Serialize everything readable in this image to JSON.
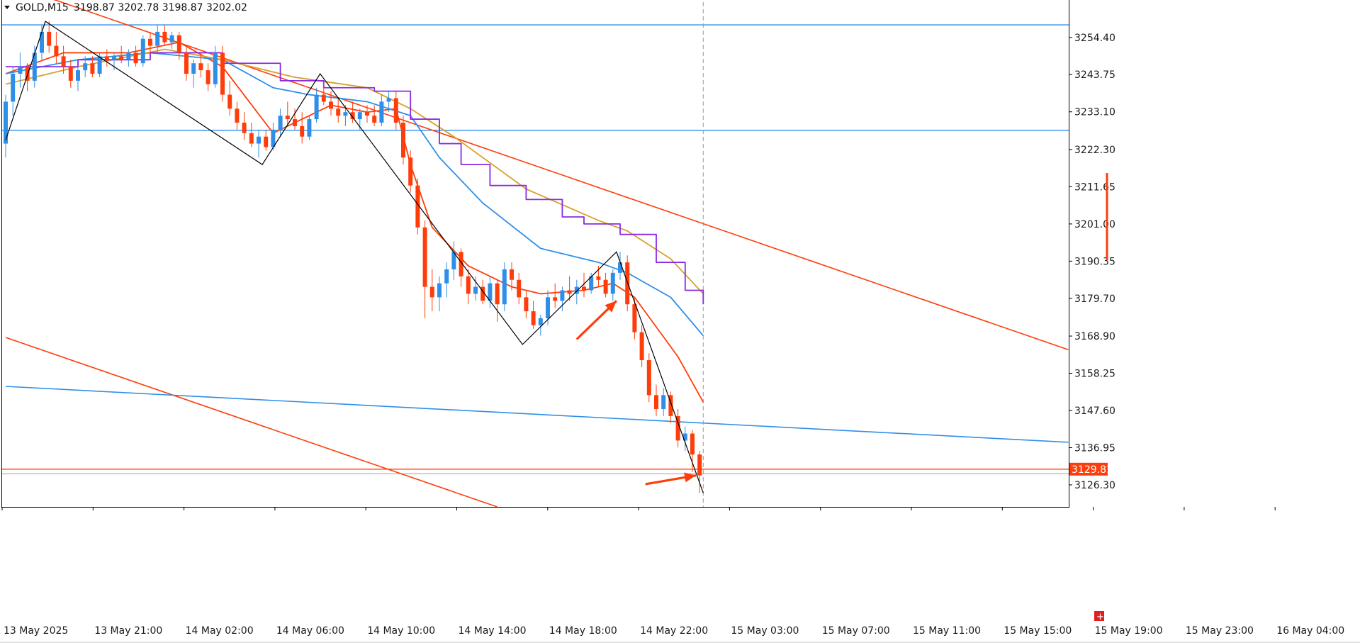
{
  "header": {
    "menu_icon": "triangle-down-icon",
    "symbol": "GOLD,M15",
    "ohlc": "3198.87 3202.78 3198.87 3202.02"
  },
  "colors": {
    "bull": "#2f8fe8",
    "bear": "#ff3d0a",
    "ma_fast": "#ff3d0a",
    "ma_mid": "#2f8fe8",
    "ma_slow": "#d8a02a",
    "ichimoku": "#8a2be2",
    "zigzag": "#000000",
    "hline_blue": "#2f8fe8",
    "hline_red": "#ff3d0a",
    "price_tag_bg": "#ff3d0a"
  },
  "chart_data": {
    "type": "candlestick",
    "symbol": "GOLD",
    "timeframe": "M15",
    "ylim": [
      3120.0,
      3264.5
    ],
    "y_ticks": [
      "3254.40",
      "3243.75",
      "3233.10",
      "3222.30",
      "3211.65",
      "3201.00",
      "3190.35",
      "3179.70",
      "3168.90",
      "3158.25",
      "3147.60",
      "3136.95",
      "3126.30"
    ],
    "x_ticks": [
      "13 May 2025",
      "13 May 21:00",
      "14 May 02:00",
      "14 May 06:00",
      "14 May 10:00",
      "14 May 14:00",
      "14 May 18:00",
      "14 May 22:00",
      "15 May 03:00",
      "15 May 07:00",
      "15 May 11:00",
      "15 May 15:00",
      "15 May 19:00",
      "15 May 23:00",
      "16 May 04:00"
    ],
    "x_range": [
      0,
      147
    ],
    "current_price": "3129.81",
    "horizontal_levels": [
      {
        "price": 3258.0,
        "color": "blue"
      },
      {
        "price": 3227.8,
        "color": "blue"
      },
      {
        "price": 3130.8,
        "color": "red"
      },
      {
        "price": 3129.5,
        "color": "gray"
      }
    ],
    "trend_lines": [
      {
        "color": "red",
        "points": [
          [
            0,
            3270.0
          ],
          [
            147,
            3165.0
          ]
        ]
      },
      {
        "color": "red",
        "points": [
          [
            0,
            3168.5
          ],
          [
            68,
            3120.0
          ]
        ]
      },
      {
        "color": "blue",
        "points": [
          [
            0,
            3154.5
          ],
          [
            147,
            3138.5
          ]
        ]
      }
    ],
    "vertical_marker_x": 96.5,
    "zigzag": [
      [
        0,
        3225.0
      ],
      [
        5.5,
        3259.0
      ],
      [
        35.5,
        3218.0
      ],
      [
        43.5,
        3244.0
      ],
      [
        71.5,
        3166.5
      ],
      [
        84.5,
        3193.0
      ],
      [
        96.5,
        3124.0
      ]
    ],
    "annotation_arrows": [
      {
        "from": [
          79,
          3168.0
        ],
        "to": [
          84.5,
          3179.0
        ]
      },
      {
        "from": [
          88.5,
          3126.5
        ],
        "to": [
          95.5,
          3129.0
        ]
      }
    ],
    "candles": [
      [
        3224.0,
        3238.0,
        3220.0,
        3236.0
      ],
      [
        3236.0,
        3246.0,
        3232.0,
        3244.0
      ],
      [
        3244.0,
        3250.0,
        3240.0,
        3246.0
      ],
      [
        3246.0,
        3247.0,
        3239.0,
        3242.0
      ],
      [
        3242.0,
        3252.0,
        3240.0,
        3250.0
      ],
      [
        3250.0,
        3258.0,
        3248.0,
        3256.0
      ],
      [
        3256.0,
        3259.0,
        3250.0,
        3252.0
      ],
      [
        3252.0,
        3256.0,
        3247.0,
        3249.0
      ],
      [
        3249.0,
        3252.0,
        3244.0,
        3246.0
      ],
      [
        3246.0,
        3248.0,
        3240.0,
        3242.0
      ],
      [
        3242.0,
        3246.0,
        3239.0,
        3245.0
      ],
      [
        3245.0,
        3249.0,
        3243.0,
        3247.0
      ],
      [
        3247.0,
        3249.0,
        3243.0,
        3244.0
      ],
      [
        3244.0,
        3250.0,
        3243.0,
        3249.0
      ],
      [
        3249.0,
        3251.0,
        3246.0,
        3248.0
      ],
      [
        3248.0,
        3250.0,
        3245.0,
        3249.0
      ],
      [
        3249.0,
        3252.0,
        3247.0,
        3248.0
      ],
      [
        3248.0,
        3251.0,
        3246.0,
        3250.0
      ],
      [
        3250.0,
        3252.0,
        3246.0,
        3247.0
      ],
      [
        3247.0,
        3255.0,
        3246.0,
        3254.0
      ],
      [
        3254.0,
        3256.0,
        3250.0,
        3252.0
      ],
      [
        3252.0,
        3258.0,
        3250.0,
        3256.0
      ],
      [
        3256.0,
        3258.0,
        3252.0,
        3253.0
      ],
      [
        3253.0,
        3256.0,
        3251.0,
        3255.0
      ],
      [
        3255.0,
        3256.0,
        3248.0,
        3250.0
      ],
      [
        3250.0,
        3252.0,
        3242.0,
        3244.0
      ],
      [
        3244.0,
        3248.0,
        3240.0,
        3247.0
      ],
      [
        3247.0,
        3250.0,
        3243.0,
        3245.0
      ],
      [
        3245.0,
        3247.0,
        3239.0,
        3241.0
      ],
      [
        3241.0,
        3252.0,
        3240.0,
        3250.0
      ],
      [
        3250.0,
        3252.0,
        3236.0,
        3238.0
      ],
      [
        3238.0,
        3242.0,
        3232.0,
        3234.0
      ],
      [
        3234.0,
        3236.0,
        3228.0,
        3230.0
      ],
      [
        3230.0,
        3233.0,
        3225.0,
        3227.0
      ],
      [
        3227.0,
        3230.0,
        3223.0,
        3224.0
      ],
      [
        3224.0,
        3228.0,
        3220.0,
        3226.0
      ],
      [
        3226.0,
        3228.0,
        3222.0,
        3223.0
      ],
      [
        3223.0,
        3230.0,
        3222.0,
        3228.0
      ],
      [
        3228.0,
        3234.0,
        3226.0,
        3232.0
      ],
      [
        3232.0,
        3236.0,
        3229.0,
        3231.0
      ],
      [
        3231.0,
        3234.0,
        3228.0,
        3229.0
      ],
      [
        3229.0,
        3233.0,
        3224.0,
        3226.0
      ],
      [
        3226.0,
        3232.0,
        3225.0,
        3231.0
      ],
      [
        3231.0,
        3240.0,
        3230.0,
        3238.0
      ],
      [
        3238.0,
        3242.0,
        3235.0,
        3236.0
      ],
      [
        3236.0,
        3239.0,
        3232.0,
        3234.0
      ],
      [
        3234.0,
        3237.0,
        3230.0,
        3232.0
      ],
      [
        3232.0,
        3235.0,
        3229.0,
        3233.0
      ],
      [
        3233.0,
        3236.0,
        3230.0,
        3231.0
      ],
      [
        3231.0,
        3234.0,
        3228.0,
        3233.0
      ],
      [
        3233.0,
        3235.0,
        3230.0,
        3232.0
      ],
      [
        3232.0,
        3235.0,
        3229.0,
        3230.0
      ],
      [
        3230.0,
        3238.0,
        3229.0,
        3236.0
      ],
      [
        3236.0,
        3239.0,
        3233.0,
        3237.0
      ],
      [
        3237.0,
        3239.0,
        3228.0,
        3230.0
      ],
      [
        3230.0,
        3232.0,
        3218.0,
        3220.0
      ],
      [
        3220.0,
        3222.0,
        3210.0,
        3212.0
      ],
      [
        3212.0,
        3214.0,
        3198.0,
        3200.0
      ],
      [
        3200.0,
        3202.0,
        3174.0,
        3183.0
      ],
      [
        3183.0,
        3188.0,
        3176.0,
        3180.0
      ],
      [
        3180.0,
        3186.0,
        3176.0,
        3184.0
      ],
      [
        3184.0,
        3190.0,
        3180.0,
        3188.0
      ],
      [
        3188.0,
        3196.0,
        3185.0,
        3193.0
      ],
      [
        3193.0,
        3194.0,
        3183.0,
        3186.0
      ],
      [
        3186.0,
        3188.0,
        3178.0,
        3181.0
      ],
      [
        3181.0,
        3186.0,
        3179.0,
        3183.0
      ],
      [
        3183.0,
        3185.0,
        3178.0,
        3179.0
      ],
      [
        3179.0,
        3186.0,
        3177.0,
        3184.0
      ],
      [
        3184.0,
        3185.0,
        3173.0,
        3178.0
      ],
      [
        3178.0,
        3190.0,
        3176.0,
        3188.0
      ],
      [
        3188.0,
        3190.0,
        3182.0,
        3185.0
      ],
      [
        3185.0,
        3187.0,
        3178.0,
        3180.0
      ],
      [
        3180.0,
        3182.0,
        3174.0,
        3176.0
      ],
      [
        3176.0,
        3179.0,
        3171.0,
        3172.0
      ],
      [
        3172.0,
        3175.0,
        3169.0,
        3174.0
      ],
      [
        3174.0,
        3182.0,
        3172.0,
        3180.0
      ],
      [
        3180.0,
        3184.0,
        3177.0,
        3179.0
      ],
      [
        3179.0,
        3183.0,
        3176.0,
        3182.0
      ],
      [
        3182.0,
        3186.0,
        3179.0,
        3181.0
      ],
      [
        3181.0,
        3185.0,
        3178.0,
        3183.0
      ],
      [
        3183.0,
        3187.0,
        3180.0,
        3182.0
      ],
      [
        3182.0,
        3187.0,
        3181.0,
        3186.0
      ],
      [
        3186.0,
        3189.0,
        3183.0,
        3185.0
      ],
      [
        3185.0,
        3187.0,
        3180.0,
        3181.0
      ],
      [
        3181.0,
        3188.0,
        3179.0,
        3187.0
      ],
      [
        3187.0,
        3193.0,
        3185.0,
        3190.0
      ],
      [
        3190.0,
        3192.0,
        3176.0,
        3178.0
      ],
      [
        3178.0,
        3180.0,
        3168.0,
        3170.0
      ],
      [
        3170.0,
        3172.0,
        3160.0,
        3162.0
      ],
      [
        3162.0,
        3164.0,
        3150.0,
        3152.0
      ],
      [
        3152.0,
        3155.0,
        3146.0,
        3148.0
      ],
      [
        3148.0,
        3154.0,
        3146.0,
        3152.0
      ],
      [
        3152.0,
        3153.0,
        3144.0,
        3146.0
      ],
      [
        3146.0,
        3148.0,
        3137.0,
        3139.0
      ],
      [
        3139.0,
        3143.0,
        3136.0,
        3141.0
      ],
      [
        3141.0,
        3142.0,
        3130.0,
        3135.0
      ],
      [
        3135.0,
        3136.0,
        3124.0,
        3129.0
      ]
    ],
    "moving_averages": [
      {
        "key": "fast",
        "color": "red",
        "points": [
          [
            0,
            3244.0
          ],
          [
            8,
            3250.0
          ],
          [
            17,
            3250.0
          ],
          [
            24,
            3253.0
          ],
          [
            30,
            3246.0
          ],
          [
            37,
            3227.0
          ],
          [
            45,
            3235.0
          ],
          [
            50,
            3233.0
          ],
          [
            54,
            3234.0
          ],
          [
            56,
            3218.0
          ],
          [
            59,
            3200.0
          ],
          [
            64,
            3189.0
          ],
          [
            70,
            3183.0
          ],
          [
            74,
            3181.0
          ],
          [
            80,
            3182.0
          ],
          [
            84,
            3184.0
          ],
          [
            87,
            3180.0
          ],
          [
            93,
            3163.0
          ],
          [
            96.5,
            3150.0
          ]
        ]
      },
      {
        "key": "mid",
        "color": "blue",
        "points": [
          [
            0,
            3244.0
          ],
          [
            10,
            3248.0
          ],
          [
            20,
            3250.0
          ],
          [
            30,
            3248.0
          ],
          [
            37,
            3240.0
          ],
          [
            42,
            3238.0
          ],
          [
            50,
            3236.0
          ],
          [
            56,
            3232.0
          ],
          [
            60,
            3220.0
          ],
          [
            66,
            3207.0
          ],
          [
            74,
            3194.0
          ],
          [
            82,
            3190.0
          ],
          [
            86,
            3187.0
          ],
          [
            92,
            3180.0
          ],
          [
            96.5,
            3169.0
          ]
        ]
      },
      {
        "key": "slow",
        "color": "gold",
        "points": [
          [
            0,
            3241.0
          ],
          [
            10,
            3246.0
          ],
          [
            22,
            3251.0
          ],
          [
            30,
            3248.0
          ],
          [
            40,
            3243.0
          ],
          [
            50,
            3240.0
          ],
          [
            56,
            3234.0
          ],
          [
            62,
            3226.0
          ],
          [
            72,
            3211.0
          ],
          [
            82,
            3202.0
          ],
          [
            86,
            3199.0
          ],
          [
            92,
            3191.0
          ],
          [
            96.5,
            3181.0
          ]
        ]
      },
      {
        "key": "ichimoku",
        "color": "purple",
        "points": [
          [
            0,
            3246.0
          ],
          [
            10,
            3248.0
          ],
          [
            20,
            3250.0
          ],
          [
            30,
            3247.0
          ],
          [
            38,
            3242.0
          ],
          [
            44,
            3240.0
          ],
          [
            51,
            3239.0
          ],
          [
            56,
            3231.0
          ],
          [
            60,
            3224.0
          ],
          [
            63,
            3218.0
          ],
          [
            67,
            3212.0
          ],
          [
            72,
            3208.0
          ],
          [
            77,
            3203.0
          ],
          [
            80,
            3201.0
          ],
          [
            85,
            3198.0
          ],
          [
            90,
            3190.0
          ],
          [
            94,
            3182.0
          ],
          [
            96.5,
            3178.0
          ]
        ]
      }
    ]
  }
}
